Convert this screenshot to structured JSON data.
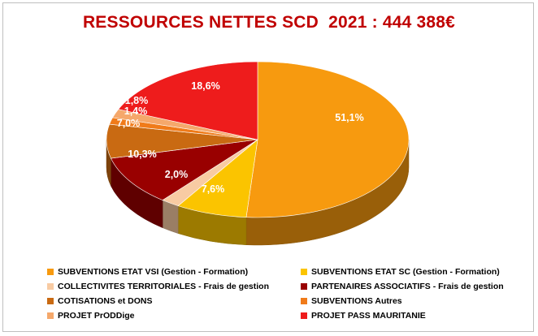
{
  "chart_data": {
    "type": "pie",
    "title": "RESSOURCES NETTES SCD  2021 : 444 388€",
    "legend_placement": "bottom",
    "slices": [
      {
        "name": "SUBVENTIONS ETAT VSI (Gestion - Formation)",
        "value": 51.1,
        "label": "51,1%",
        "color": "#f79a0f"
      },
      {
        "name": "SUBVENTIONS ETAT SC (Gestion - Formation)",
        "value": 7.6,
        "label": "7,6%",
        "color": "#fbc400"
      },
      {
        "name": "COLLECTIVITES TERRITORIALES - Frais de gestion",
        "value": 2.0,
        "label": "2,0%",
        "color": "#f8cba3"
      },
      {
        "name": "PARTENAIRES ASSOCIATIFS - Frais de gestion",
        "value": 10.3,
        "label": "10,3%",
        "color": "#990000"
      },
      {
        "name": "COTISATIONS et DONS",
        "value": 7.0,
        "label": "7,0%",
        "color": "#c96a12"
      },
      {
        "name": "SUBVENTIONS Autres",
        "value": 1.4,
        "label": "1,4%",
        "color": "#f07b1a"
      },
      {
        "name": "PROJET PrODDige",
        "value": 1.8,
        "label": "1,8%",
        "color": "#f5a86b"
      },
      {
        "name": "PROJET PASS MAURITANIE",
        "value": 18.6,
        "label": "18,6%",
        "color": "#ee1c1c"
      }
    ]
  }
}
